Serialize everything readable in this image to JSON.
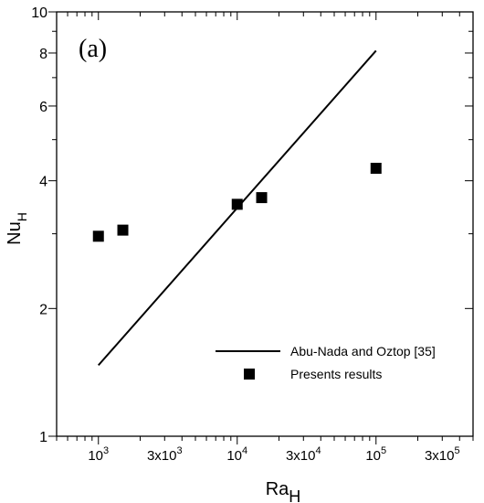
{
  "chart_data": {
    "type": "scatter",
    "panel_label": "(a)",
    "xlabel": {
      "base": "Ra",
      "sub": "H"
    },
    "ylabel": {
      "base": "Nu",
      "sub": "H"
    },
    "xscale": "log",
    "yscale": "log",
    "xlim": [
      500,
      500000
    ],
    "ylim": [
      1,
      10
    ],
    "xticks": [
      {
        "value": 1000,
        "mant": "",
        "base": "10",
        "exp": "3"
      },
      {
        "value": 3000,
        "mant": "3x",
        "base": "10",
        "exp": "3"
      },
      {
        "value": 10000,
        "mant": "",
        "base": "10",
        "exp": "4"
      },
      {
        "value": 30000,
        "mant": "3x",
        "base": "10",
        "exp": "4"
      },
      {
        "value": 100000,
        "mant": "",
        "base": "10",
        "exp": "5"
      },
      {
        "value": 300000,
        "mant": "3x",
        "base": "10",
        "exp": "5"
      }
    ],
    "yticks": [
      {
        "value": 1,
        "label": "1"
      },
      {
        "value": 2,
        "label": "2"
      },
      {
        "value": 4,
        "label": "4"
      },
      {
        "value": 6,
        "label": "6"
      },
      {
        "value": 8,
        "label": "8"
      },
      {
        "value": 10,
        "label": "10"
      }
    ],
    "grid": false,
    "legend_position": "bottom-right",
    "series": [
      {
        "name": "Abu-Nada and Oztop [35]",
        "kind": "line",
        "color": "#000000",
        "x": [
          1000,
          100000
        ],
        "y": [
          1.47,
          8.1
        ]
      },
      {
        "name": "Presents results",
        "kind": "marker",
        "marker": "square",
        "color": "#000000",
        "x": [
          1000,
          1500,
          10000,
          15000,
          100000
        ],
        "y": [
          2.96,
          3.06,
          3.52,
          3.65,
          4.28
        ]
      }
    ]
  }
}
